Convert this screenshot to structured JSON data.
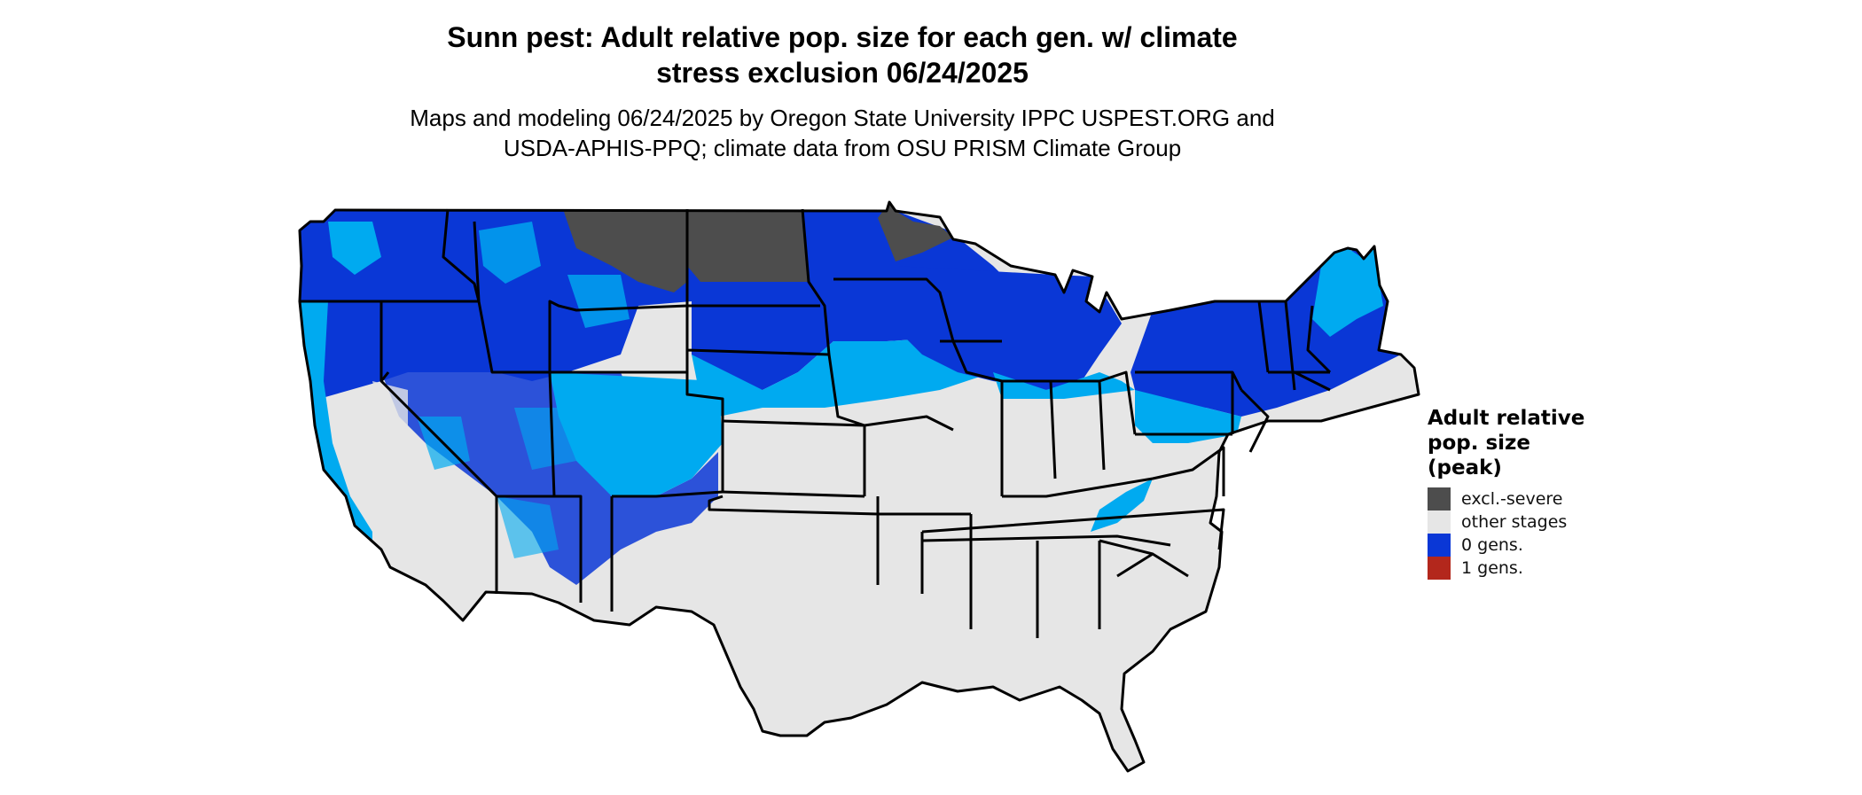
{
  "title": {
    "line1": "Sunn pest: Adult relative pop. size for each gen. w/ climate",
    "line2": "stress exclusion 06/24/2025"
  },
  "subtitle": {
    "line1": "Maps and modeling 06/24/2025 by Oregon State University IPPC USPEST.ORG and",
    "line2": "USDA-APHIS-PPQ; climate data from OSU PRISM Climate Group"
  },
  "legend": {
    "title_line1": "Adult relative",
    "title_line2": "pop. size",
    "title_line3": "(peak)",
    "items": [
      {
        "label": "excl.-severe",
        "color": "#4d4d4d"
      },
      {
        "label": "other stages",
        "color": "#e6e6e6"
      },
      {
        "label": "0 gens.",
        "color": "#0a37d6"
      },
      {
        "label": "1 gens.",
        "color": "#b3271c"
      }
    ]
  },
  "map_colors": {
    "land": "#e6e6e6",
    "excluded": "#4d4d4d",
    "zero_gens_dark": "#0a37d6",
    "zero_gens_light": "#00aaf0",
    "borders": "#000000"
  }
}
